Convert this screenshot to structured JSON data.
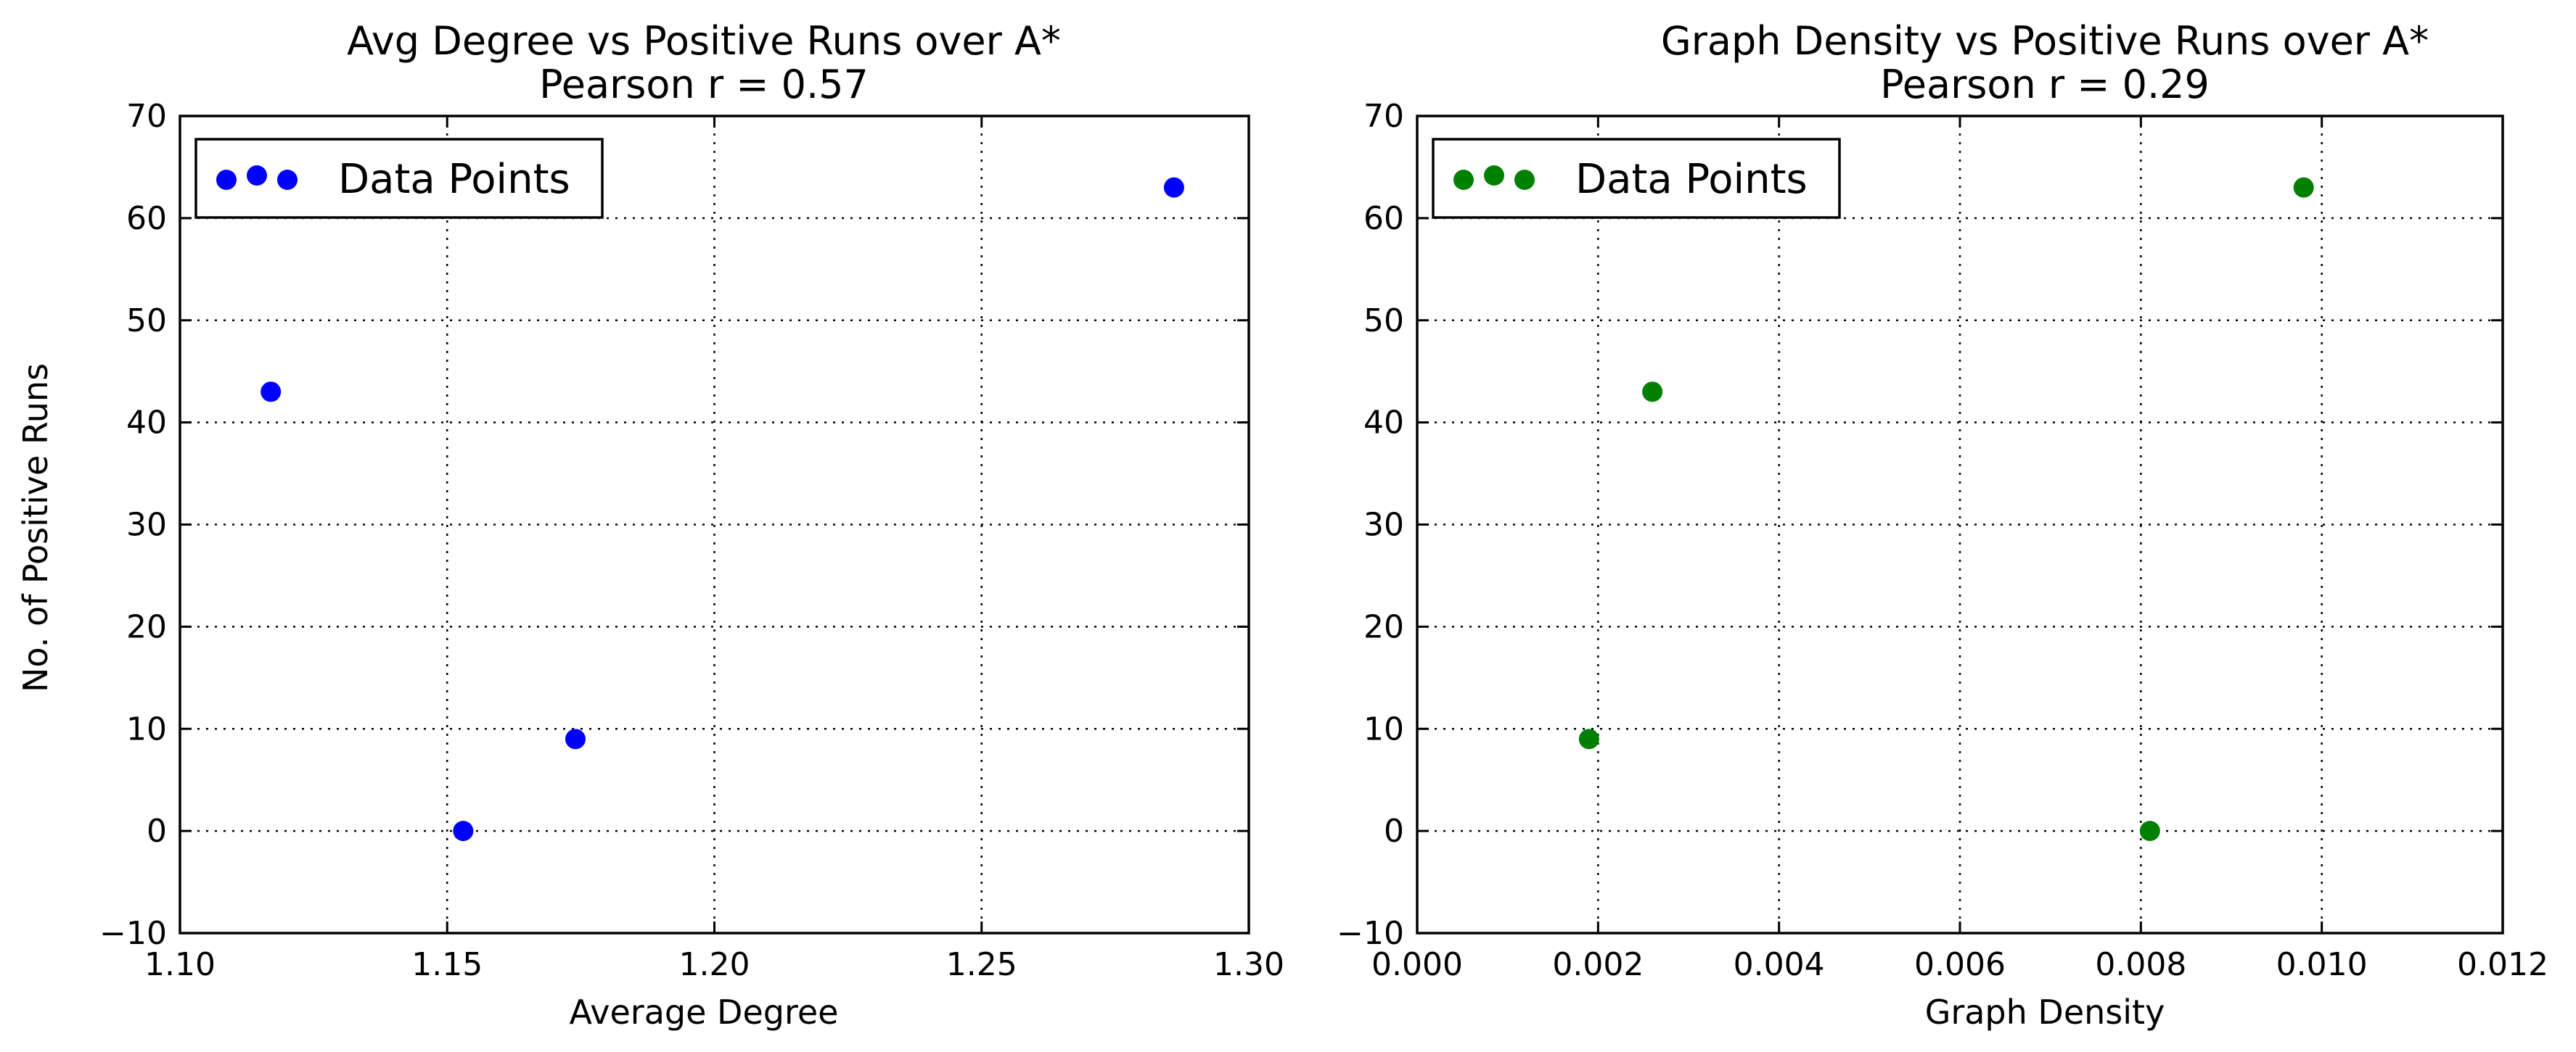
{
  "chart_data": [
    {
      "type": "scatter",
      "title": "Avg Degree vs Positive Runs over A*",
      "subtitle": "Pearson r = 0.57",
      "xlabel": "Average Degree",
      "ylabel": "No. of Positive Runs",
      "xlim": [
        1.1,
        1.3
      ],
      "ylim": [
        -10,
        70
      ],
      "xticks": [
        1.1,
        1.15,
        1.2,
        1.25,
        1.3
      ],
      "xtick_labels": [
        "1.10",
        "1.15",
        "1.20",
        "1.25",
        "1.30"
      ],
      "yticks": [
        -10,
        0,
        10,
        20,
        30,
        40,
        50,
        60,
        70
      ],
      "ytick_labels": [
        "−10",
        "0",
        "10",
        "20",
        "30",
        "40",
        "50",
        "60",
        "70"
      ],
      "grid": true,
      "legend_position": "top-left",
      "color": "#0000ff",
      "series": [
        {
          "name": "Data Points",
          "x": [
            1.117,
            1.153,
            1.174,
            1.286
          ],
          "y": [
            43,
            0,
            9,
            63
          ]
        }
      ]
    },
    {
      "type": "scatter",
      "title": "Graph Density vs Positive Runs over A*",
      "subtitle": "Pearson r = 0.29",
      "xlabel": "Graph Density",
      "ylabel": "",
      "xlim": [
        0.0,
        0.012
      ],
      "ylim": [
        -10,
        70
      ],
      "xticks": [
        0.0,
        0.002,
        0.004,
        0.006,
        0.008,
        0.01,
        0.012
      ],
      "xtick_labels": [
        "0.000",
        "0.002",
        "0.004",
        "0.006",
        "0.008",
        "0.010",
        "0.012"
      ],
      "yticks": [
        -10,
        0,
        10,
        20,
        30,
        40,
        50,
        60,
        70
      ],
      "ytick_labels": [
        "−10",
        "0",
        "10",
        "20",
        "30",
        "40",
        "50",
        "60",
        "70"
      ],
      "grid": true,
      "legend_position": "top-left",
      "color": "#008000",
      "series": [
        {
          "name": "Data Points",
          "x": [
            0.0026,
            0.0019,
            0.0081,
            0.0098
          ],
          "y": [
            43,
            9,
            0,
            63
          ]
        }
      ]
    }
  ]
}
